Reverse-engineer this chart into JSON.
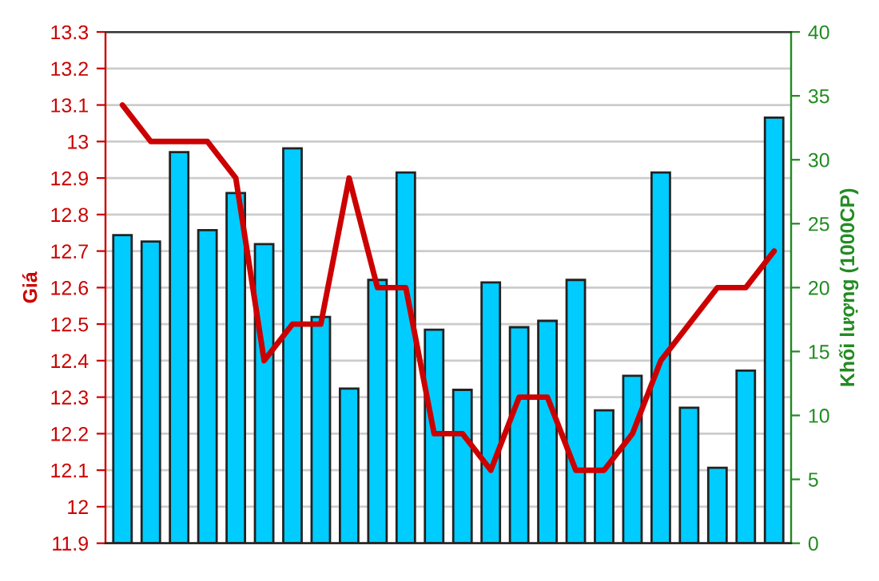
{
  "chart_data": {
    "type": "bar",
    "ylabel": "Giá",
    "y2label": "Khối lượng (1000CP)",
    "categories": [
      null,
      null,
      null,
      null,
      null,
      null,
      null,
      null,
      null,
      null,
      null,
      null,
      null,
      null,
      null,
      null,
      null,
      null,
      null,
      null,
      null,
      null,
      null,
      null
    ],
    "series": [
      {
        "axis": "y2",
        "color": "#00ccff",
        "values": [
          24.1,
          23.6,
          30.6,
          24.5,
          27.4,
          23.4,
          30.9,
          17.7,
          12.1,
          20.6,
          29.0,
          16.7,
          12.0,
          20.4,
          16.9,
          17.4,
          20.6,
          10.4,
          13.1,
          29.0,
          10.6,
          5.9,
          13.5,
          33.3
        ]
      },
      {
        "type": "line",
        "color": "#cc0000",
        "values": [
          13.1,
          13.0,
          13.0,
          13.0,
          12.9,
          12.4,
          12.5,
          12.5,
          12.9,
          12.6,
          12.6,
          12.2,
          12.2,
          12.1,
          12.3,
          12.3,
          12.1,
          12.1,
          12.2,
          12.4,
          12.5,
          12.6,
          12.6,
          12.7
        ]
      }
    ],
    "ylim": [
      11.9,
      13.3
    ],
    "yticks": [
      11.9,
      12,
      12.1,
      12.2,
      12.3,
      12.4,
      12.5,
      12.6,
      12.7,
      12.8,
      12.9,
      13,
      13.1,
      13.2,
      13.3
    ],
    "y2lim": [
      0,
      40
    ],
    "y2ticks": [
      0,
      5,
      10,
      15,
      20,
      25,
      30,
      35,
      40
    ],
    "grid": "y",
    "tick_labels": "y",
    "marker": "none",
    "line_style": "solid"
  }
}
